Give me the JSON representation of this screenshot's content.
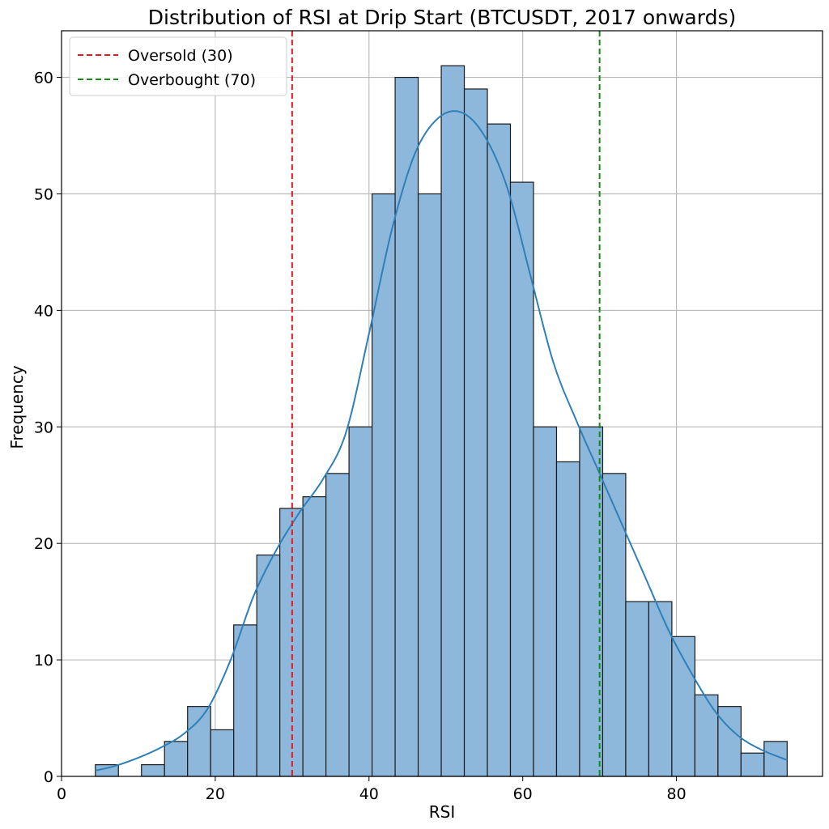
{
  "chart_data": {
    "type": "bar",
    "title": "Distribution of RSI at Drip Start (BTCUSDT, 2017 onwards)",
    "xlabel": "RSI",
    "ylabel": "Frequency",
    "xlim": [
      0,
      99
    ],
    "ylim": [
      0,
      64
    ],
    "xticks": [
      0,
      20,
      40,
      60,
      80
    ],
    "yticks": [
      0,
      10,
      20,
      30,
      40,
      50,
      60
    ],
    "grid": true,
    "bin_start": 4.4,
    "bin_width": 3.0,
    "values": [
      1,
      0,
      1,
      3,
      6,
      4,
      13,
      19,
      23,
      24,
      26,
      30,
      50,
      60,
      50,
      61,
      59,
      56,
      51,
      30,
      27,
      30,
      26,
      15,
      15,
      12,
      7,
      6,
      2,
      3
    ],
    "bar_color": "#8db8dc",
    "bar_edge_color": "#1a1a1a",
    "kde": {
      "color": "#2f7fb8",
      "x": [
        4.4,
        7,
        10,
        13,
        16,
        19,
        22,
        25,
        28,
        31,
        34,
        37,
        40,
        43,
        46,
        49,
        52,
        55,
        58,
        61,
        64,
        67,
        70,
        73,
        76,
        79,
        82,
        85,
        88,
        91,
        94.4
      ],
      "y": [
        0.5,
        0.9,
        1.6,
        2.5,
        3.7,
        5.8,
        10.0,
        15.5,
        19.5,
        22.7,
        25.5,
        29.5,
        38.0,
        47.0,
        53.5,
        56.5,
        57.0,
        55.0,
        50.5,
        43.0,
        35.5,
        30.5,
        26.0,
        21.5,
        17.0,
        12.5,
        8.8,
        5.6,
        3.5,
        2.3,
        1.4
      ]
    },
    "reference_lines": [
      {
        "x": 30,
        "label": "Oversold (30)",
        "color": "#e8171e"
      },
      {
        "x": 70,
        "label": "Overbought (70)",
        "color": "#168a16"
      }
    ],
    "legend_position": "top-left"
  }
}
